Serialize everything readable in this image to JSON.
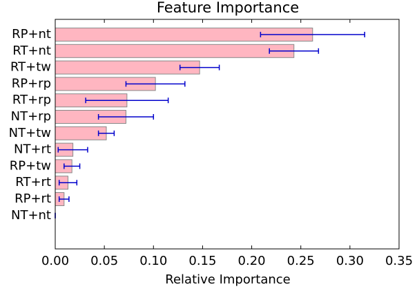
{
  "chart_data": {
    "type": "barh",
    "title": "Feature Importance",
    "x_label": "Relative Importance",
    "categories": [
      "RP+nt",
      "RT+nt",
      "RT+tw",
      "RP+rp",
      "RT+rp",
      "NT+rp",
      "NT+tw",
      "NT+rt",
      "RP+tw",
      "RT+rt",
      "RP+rt",
      "NT+nt"
    ],
    "values": [
      0.262,
      0.243,
      0.147,
      0.102,
      0.073,
      0.072,
      0.052,
      0.018,
      0.017,
      0.013,
      0.009,
      0
    ],
    "errors": [
      0.053,
      0.025,
      0.02,
      0.03,
      0.042,
      0.028,
      0.008,
      0.015,
      0.008,
      0.009,
      0.005,
      0
    ],
    "color": "#ffb6c1",
    "error_color": "#0000cc",
    "xlim": [
      0,
      0.35
    ],
    "xticks": [
      {
        "value": 0,
        "label": "0.00"
      },
      {
        "value": 0.05,
        "label": "0.05"
      },
      {
        "value": 0.1,
        "label": "0.10"
      },
      {
        "value": 0.15,
        "label": "0.15"
      },
      {
        "value": 0.2,
        "label": "0.20"
      },
      {
        "value": 0.25,
        "label": "0.25"
      },
      {
        "value": 0.3,
        "label": "0.30"
      },
      {
        "value": 0.35,
        "label": "0.35"
      }
    ]
  }
}
